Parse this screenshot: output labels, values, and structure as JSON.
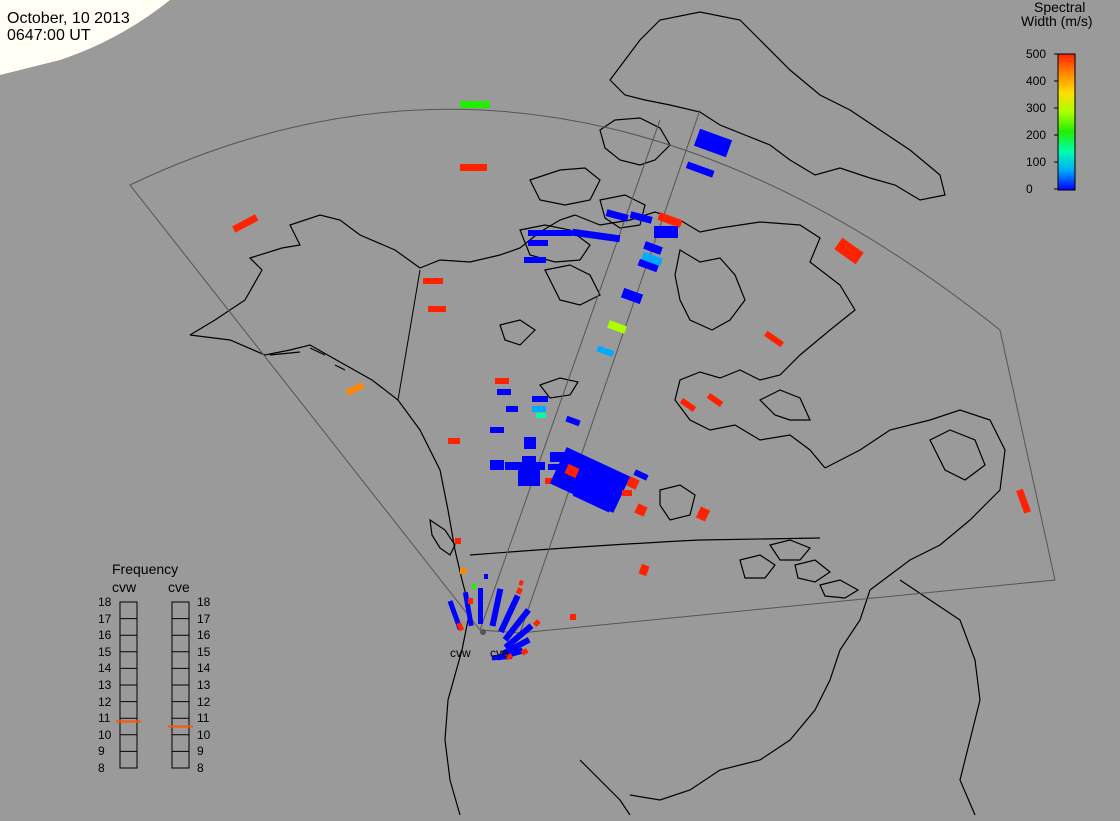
{
  "header": {
    "date": "October, 10 2013",
    "time": "0647:00 UT"
  },
  "colorbar": {
    "title_line1": "Spectral",
    "title_line2": "Width (m/s)",
    "ticks": [
      "500",
      "400",
      "300",
      "200",
      "100",
      "0"
    ],
    "range": [
      0,
      500
    ],
    "colors": [
      "#0000ff",
      "#00aaff",
      "#00ffaa",
      "#22ee00",
      "#aaff00",
      "#ffdd00",
      "#ff8800",
      "#ff2200"
    ]
  },
  "frequency": {
    "title": "Frequency",
    "radars": [
      "cvw",
      "cve"
    ],
    "ticks": [
      "18",
      "17",
      "16",
      "15",
      "14",
      "13",
      "12",
      "11",
      "10",
      "9",
      "8"
    ],
    "range": [
      8,
      18
    ],
    "values": [
      10.8,
      10.5
    ],
    "marker_color": "#ff5500"
  },
  "radar_labels": [
    "cvw",
    "cve"
  ],
  "map": {
    "background": "#9a9a9a",
    "coast_color": "#000000",
    "grid_color": "#555555"
  }
}
